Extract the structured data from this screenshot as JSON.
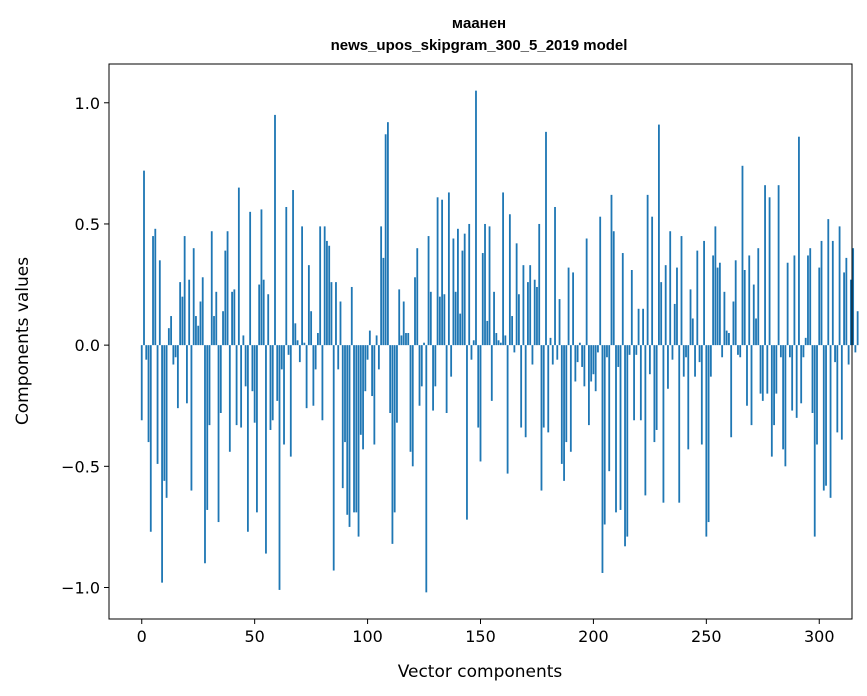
{
  "chart_data": {
    "type": "bar",
    "title": "мaанен",
    "subtitle": "news_upos_skipgram_300_5_2019 model",
    "xlabel": "Vector components",
    "ylabel": "Components values",
    "xlim": [
      -14.5,
      314.5
    ],
    "ylim": [
      -1.13,
      1.16
    ],
    "xticks": [
      0,
      50,
      100,
      150,
      200,
      250,
      300
    ],
    "xtick_labels": [
      "0",
      "50",
      "100",
      "150",
      "200",
      "250",
      "300"
    ],
    "yticks": [
      -1.0,
      -0.5,
      0.0,
      0.5,
      1.0
    ],
    "ytick_labels": [
      "−1.0",
      "−0.5",
      "0.0",
      "0.5",
      "1.0"
    ],
    "grid": false,
    "bar_color": "#1f77b4",
    "x_start": 0,
    "values": [
      -0.31,
      0.72,
      -0.06,
      -0.4,
      -0.77,
      0.45,
      0.48,
      -0.49,
      0.35,
      -0.98,
      -0.56,
      -0.63,
      0.07,
      0.12,
      -0.08,
      -0.05,
      -0.26,
      0.26,
      0.2,
      0.45,
      -0.24,
      0.27,
      -0.6,
      0.4,
      0.12,
      0.08,
      0.18,
      0.28,
      -0.9,
      -0.68,
      -0.33,
      0.47,
      0.12,
      0.22,
      -0.73,
      -0.28,
      0.14,
      0.39,
      0.47,
      -0.44,
      0.22,
      0.23,
      -0.33,
      0.65,
      -0.34,
      0.04,
      -0.17,
      -0.77,
      0.55,
      -0.19,
      -0.32,
      -0.69,
      0.25,
      0.56,
      0.27,
      -0.86,
      0.21,
      -0.35,
      -0.31,
      0.95,
      -0.23,
      -1.01,
      -0.1,
      -0.41,
      0.57,
      -0.04,
      -0.46,
      0.64,
      0.09,
      0.02,
      -0.07,
      0.49,
      0.01,
      -0.26,
      0.33,
      0.14,
      -0.25,
      -0.1,
      0.05,
      0.49,
      -0.31,
      0.49,
      0.43,
      0.41,
      0.26,
      -0.93,
      0.26,
      -0.1,
      0.18,
      -0.59,
      -0.4,
      -0.7,
      -0.75,
      0.24,
      -0.69,
      -0.69,
      -0.79,
      -0.37,
      -0.43,
      -0.19,
      -0.06,
      0.06,
      -0.21,
      -0.41,
      0.04,
      -0.1,
      0.49,
      0.36,
      0.87,
      0.92,
      -0.28,
      -0.82,
      -0.69,
      -0.32,
      0.23,
      0.04,
      0.18,
      0.05,
      0.05,
      -0.44,
      -0.5,
      0.28,
      0.4,
      -0.25,
      -0.17,
      0.01,
      -1.02,
      0.45,
      0.22,
      -0.27,
      -0.17,
      0.61,
      0.2,
      0.6,
      0.21,
      -0.28,
      0.63,
      -0.13,
      0.44,
      0.22,
      0.48,
      0.13,
      0.39,
      0.46,
      -0.72,
      0.5,
      -0.06,
      0.02,
      1.05,
      -0.34,
      -0.48,
      0.38,
      0.5,
      0.1,
      0.49,
      -0.23,
      0.22,
      0.05,
      0.02,
      0.01,
      0.63,
      0.04,
      -0.53,
      0.54,
      0.12,
      -0.03,
      0.42,
      0.21,
      -0.34,
      0.33,
      -0.38,
      0.26,
      0.33,
      -0.08,
      0.27,
      0.24,
      0.5,
      -0.6,
      -0.34,
      0.88,
      -0.36,
      0.03,
      -0.08,
      0.57,
      -0.06,
      0.19,
      -0.49,
      -0.56,
      -0.4,
      0.32,
      -0.44,
      0.3,
      -0.15,
      -0.07,
      0.01,
      -0.09,
      -0.17,
      0.44,
      -0.33,
      -0.15,
      -0.12,
      -0.19,
      -0.03,
      0.53,
      -0.94,
      -0.74,
      -0.05,
      -0.52,
      0.62,
      0.47,
      -0.69,
      -0.09,
      -0.68,
      0.38,
      -0.83,
      -0.79,
      -0.04,
      0.31,
      -0.31,
      -0.04,
      0.15,
      -0.31,
      0.15,
      -0.62,
      0.62,
      -0.12,
      0.53,
      -0.4,
      -0.35,
      0.91,
      0.26,
      -0.65,
      0.33,
      -0.18,
      0.47,
      -0.06,
      0.17,
      0.32,
      -0.65,
      0.45,
      -0.13,
      -0.05,
      -0.43,
      0.23,
      0.11,
      -0.13,
      0.39,
      -0.07,
      -0.41,
      0.43,
      -0.79,
      -0.73,
      -0.13,
      0.37,
      0.49,
      0.32,
      0.34,
      -0.05,
      0.22,
      0.06,
      0.05,
      -0.38,
      0.18,
      0.35,
      -0.04,
      -0.05,
      0.74,
      0.31,
      -0.25,
      0.37,
      -0.33,
      0.25,
      0.11,
      0.4,
      -0.2,
      -0.23,
      0.66,
      -0.2,
      0.61,
      -0.46,
      -0.33,
      -0.2,
      0.66,
      -0.05,
      -0.43,
      -0.5,
      0.34,
      -0.05,
      -0.27,
      0.37,
      -0.3,
      0.86,
      -0.24,
      -0.05,
      0.03,
      0.37,
      0.4,
      -0.28,
      -0.79,
      -0.41,
      0.32,
      0.43,
      -0.6,
      -0.58,
      0.52,
      -0.63,
      0.43,
      -0.07,
      -0.36,
      0.49,
      -0.39,
      0.3,
      0.36,
      -0.08,
      0.27,
      0.4,
      -0.03,
      0.14
    ]
  }
}
